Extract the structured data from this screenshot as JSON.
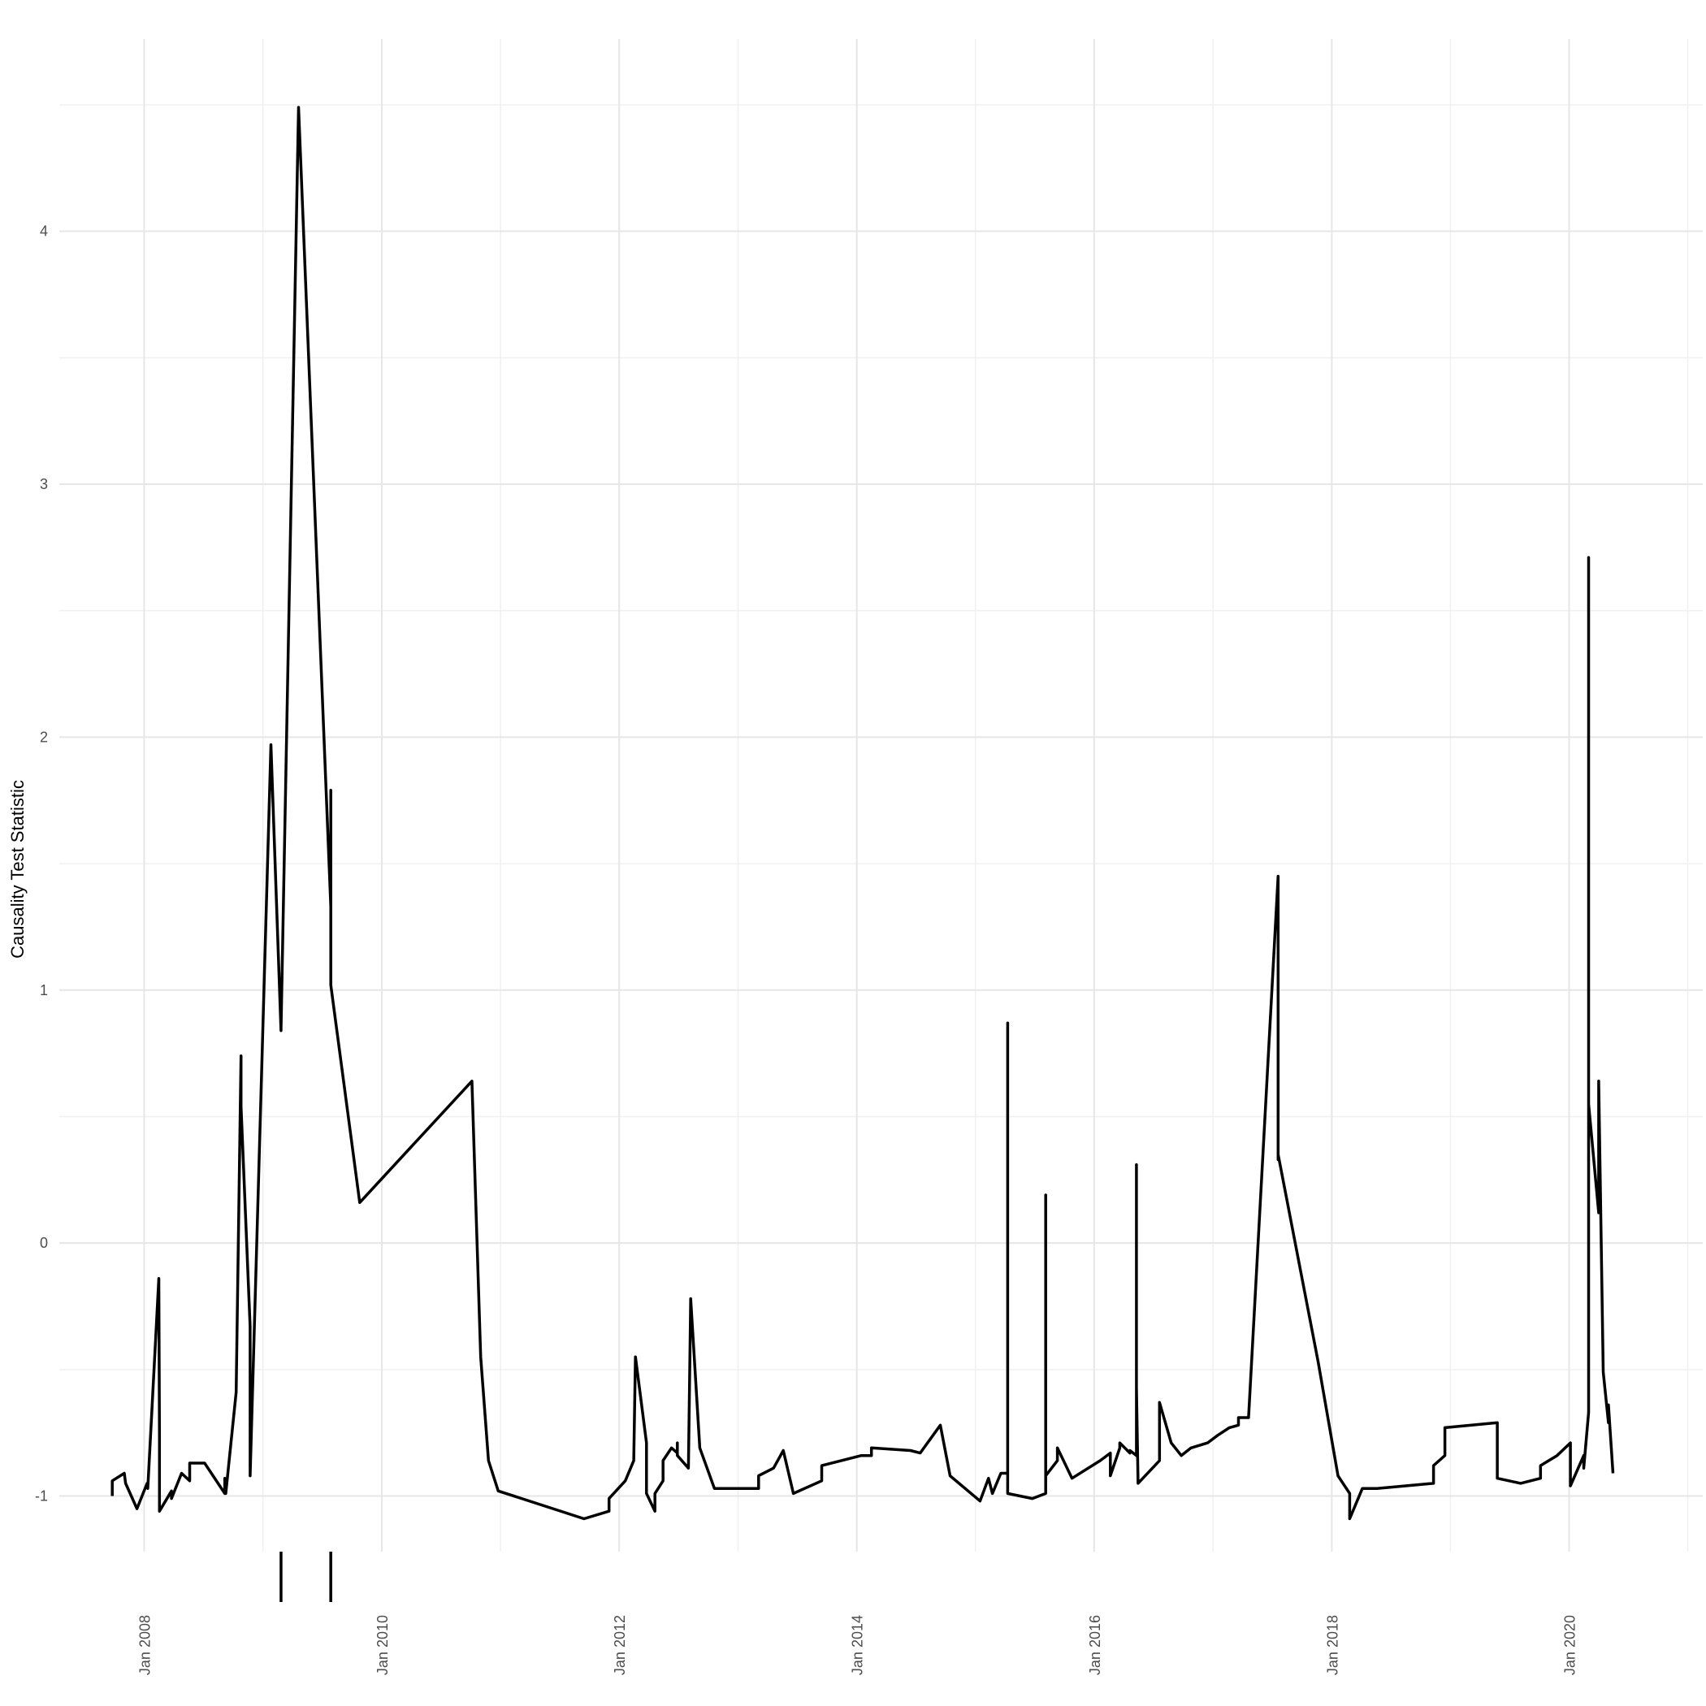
{
  "chart_data": {
    "type": "line",
    "title": "",
    "xlabel": "",
    "ylabel": "Causality Test Statistic",
    "xlim": [
      "2007-04-15",
      "2021-02-15"
    ],
    "ylim": [
      -1.22,
      4.76
    ],
    "grid": true,
    "colors": {
      "line": "#000000",
      "grid_major": "#e6e6e6",
      "grid_minor": "#f0f0f0",
      "background": "#ffffff"
    },
    "x_ticks": [
      {
        "date": "2008-01-01",
        "label": "Jan 2008"
      },
      {
        "date": "2010-01-01",
        "label": "Jan 2010"
      },
      {
        "date": "2012-01-01",
        "label": "Jan 2012"
      },
      {
        "date": "2014-01-01",
        "label": "Jan 2014"
      },
      {
        "date": "2016-01-01",
        "label": "Jan 2016"
      },
      {
        "date": "2018-01-01",
        "label": "Jan 2018"
      },
      {
        "date": "2020-01-01",
        "label": "Jan 2020"
      }
    ],
    "y_ticks": [
      {
        "value": -1,
        "label": "-1"
      },
      {
        "value": 0,
        "label": "0"
      },
      {
        "value": 1,
        "label": "1"
      },
      {
        "value": 2,
        "label": "2"
      },
      {
        "value": 3,
        "label": "3"
      },
      {
        "value": 4,
        "label": "4"
      }
    ],
    "series": [
      {
        "x": [
          "2007-09-25",
          "2007-09-25",
          "2007-11-01",
          "2007-11-05",
          "2007-12-10",
          "2008-01-10",
          "2008-01-12",
          "2008-02-15",
          "2008-02-17",
          "2008-02-17",
          "2008-03-25",
          "2008-03-25",
          "2008-04-25",
          "2008-05-20",
          "2008-05-20",
          "2008-07-05",
          "2008-09-05",
          "2008-09-05",
          "2008-09-08",
          "2008-10-10",
          "2008-10-25",
          "2008-10-25",
          "2008-11-22",
          "2008-11-22",
          "2009-01-25",
          "2009-02-25",
          "2009-04-20",
          "2009-07-28",
          "2009-07-28",
          "2009-07-28",
          "2009-10-25",
          "2010-10-05",
          "2010-11-01",
          "2010-11-25",
          "2010-12-25",
          "2011-09-15",
          "2011-12-01",
          "2011-12-01",
          "2012-01-20",
          "2012-02-15",
          "2012-02-20",
          "2012-03-25",
          "2012-03-25",
          "2012-04-20",
          "2012-04-20",
          "2012-05-15",
          "2012-05-15",
          "2012-06-10",
          "2012-06-28",
          "2012-06-28",
          "2012-06-28",
          "2012-08-01",
          "2012-08-08",
          "2012-09-05",
          "2012-10-20",
          "2013-03-05",
          "2013-03-05",
          "2013-04-20",
          "2013-05-20",
          "2013-06-20",
          "2013-09-15",
          "2013-09-15",
          "2014-01-15",
          "2014-02-15",
          "2014-02-15",
          "2014-06-15",
          "2014-07-15",
          "2014-09-15",
          "2014-10-15",
          "2015-01-15",
          "2015-02-10",
          "2015-02-22",
          "2015-03-20",
          "2015-04-10",
          "2015-04-10",
          "2015-04-10",
          "2015-06-25",
          "2015-08-05",
          "2015-08-05",
          "2015-08-05",
          "2015-09-10",
          "2015-09-10",
          "2015-10-25",
          "2016-01-20",
          "2016-02-20",
          "2016-02-20",
          "2016-03-20",
          "2016-03-20",
          "2016-04-20",
          "2016-04-20",
          "2016-05-10",
          "2016-05-10",
          "2016-05-10",
          "2016-05-15",
          "2016-07-20",
          "2016-07-20",
          "2016-08-25",
          "2016-09-25",
          "2016-10-25",
          "2016-12-15",
          "2017-01-15",
          "2017-02-20",
          "2017-03-20",
          "2017-03-20",
          "2017-04-20",
          "2017-04-20",
          "2017-07-20",
          "2017-07-20",
          "2017-07-20",
          "2017-11-20",
          "2018-01-20",
          "2018-02-25",
          "2018-02-25",
          "2018-04-05",
          "2018-05-20",
          "2018-11-10",
          "2018-11-10",
          "2018-12-15",
          "2018-12-15",
          "2019-05-25",
          "2019-05-25",
          "2019-08-05",
          "2019-10-05",
          "2019-10-05",
          "2019-11-25",
          "2020-01-05",
          "2020-01-05",
          "2020-02-15",
          "2020-02-15",
          "2020-03-01",
          "2020-03-01",
          "2020-03-01",
          "2020-04-01",
          "2020-04-01",
          "2020-04-15",
          "2020-05-01",
          "2020-05-01",
          "2020-05-15"
        ],
        "y": [
          -1.0,
          -0.94,
          -0.91,
          -0.95,
          -1.05,
          -0.95,
          -0.97,
          -0.14,
          -0.76,
          -1.06,
          -0.98,
          -1.01,
          -0.91,
          -0.94,
          -0.87,
          -0.87,
          -0.99,
          -0.93,
          -0.99,
          -0.59,
          0.74,
          0.54,
          -0.33,
          -0.92,
          1.97,
          0.84,
          4.49,
          1.33,
          1.79,
          1.02,
          0.16,
          0.64,
          -0.45,
          -0.86,
          -0.98,
          -1.09,
          -1.06,
          -1.01,
          -0.94,
          -0.86,
          -0.45,
          -0.79,
          -0.99,
          -1.06,
          -0.99,
          -0.94,
          -0.86,
          -0.81,
          -0.83,
          -0.79,
          -0.84,
          -0.89,
          -0.22,
          -0.81,
          -0.97,
          -0.97,
          -0.92,
          -0.89,
          -0.82,
          -0.99,
          -0.94,
          -0.88,
          -0.84,
          -0.84,
          -0.81,
          -0.82,
          -0.83,
          -0.72,
          -0.92,
          -1.02,
          -0.93,
          -0.99,
          -0.91,
          -0.91,
          0.87,
          -0.99,
          -1.01,
          -0.99,
          0.19,
          -0.92,
          -0.86,
          -0.81,
          -0.93,
          -0.86,
          -0.83,
          -0.92,
          -0.81,
          -0.79,
          -0.83,
          -0.82,
          -0.84,
          0.31,
          -0.57,
          -0.95,
          -0.86,
          -0.63,
          -0.79,
          -0.84,
          -0.81,
          -0.79,
          -0.76,
          -0.73,
          -0.72,
          -0.69,
          -0.69,
          -0.69,
          1.45,
          0.33,
          0.35,
          -0.47,
          -0.92,
          -0.99,
          -1.09,
          -0.97,
          -0.97,
          -0.95,
          -0.88,
          -0.84,
          -0.73,
          -0.71,
          -0.93,
          -0.95,
          -0.93,
          -0.88,
          -0.84,
          -0.79,
          -0.96,
          -0.84,
          -0.89,
          -0.67,
          2.71,
          0.55,
          0.12,
          0.64,
          -0.51,
          -0.71,
          -0.64,
          -0.91
        ]
      }
    ],
    "rug_marks": [
      "2009-02-25",
      "2009-07-28"
    ]
  }
}
